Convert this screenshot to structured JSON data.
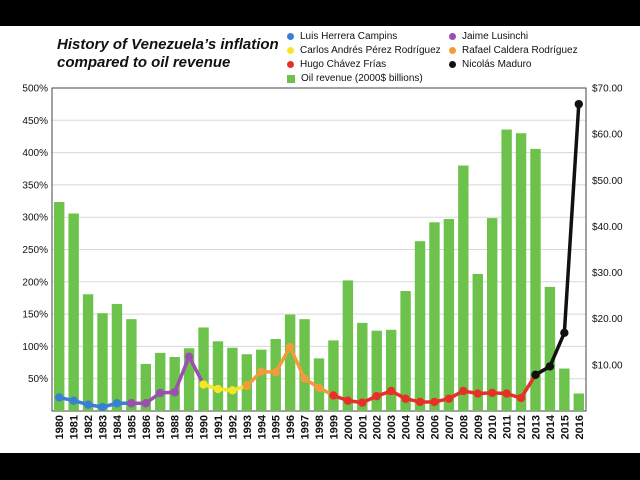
{
  "chart_data": {
    "type": "bar+line",
    "title_lines": [
      "History of Venezuela’s inflation",
      "compared to oil revenue"
    ],
    "categories": [
      "1980",
      "1981",
      "1982",
      "1983",
      "1984",
      "1985",
      "1986",
      "1987",
      "1988",
      "1989",
      "1990",
      "1991",
      "1992",
      "1993",
      "1994",
      "1995",
      "1996",
      "1997",
      "1998",
      "1999",
      "2000",
      "2001",
      "2002",
      "2003",
      "2004",
      "2005",
      "2006",
      "2007",
      "2008",
      "2009",
      "2010",
      "2011",
      "2012",
      "2013",
      "2014",
      "2015",
      "2016"
    ],
    "left_axis": {
      "label": "",
      "range": [
        0,
        500
      ],
      "ticks": [
        "50%",
        "100%",
        "150%",
        "200%",
        "250%",
        "300%",
        "350%",
        "400%",
        "450%",
        "500%"
      ]
    },
    "right_axis": {
      "label": "",
      "range": [
        0,
        70
      ],
      "ticks": [
        "$10.00",
        "$20.00",
        "$30.00",
        "$40.00",
        "$50.00",
        "$60.00",
        "$70.00"
      ]
    },
    "bars": {
      "name": "Oil revenue (2000$ billions)",
      "color": "#6cc24a",
      "values": [
        45.3,
        42.8,
        25.3,
        21.2,
        23.2,
        19.9,
        10.2,
        12.6,
        11.7,
        13.6,
        18.1,
        15.1,
        13.7,
        12.3,
        13.3,
        15.6,
        20.9,
        19.9,
        11.4,
        15.3,
        28.3,
        19.1,
        17.4,
        17.6,
        26.0,
        36.8,
        40.9,
        41.6,
        53.2,
        29.7,
        41.8,
        61.0,
        60.2,
        56.8,
        26.9,
        9.2,
        3.8
      ]
    },
    "series": [
      {
        "name": "Luis Herrera Campins",
        "color": "#3a7fd5",
        "x": [
          "1980",
          "1981",
          "1982",
          "1983",
          "1984",
          "1985"
        ],
        "values": [
          21,
          16,
          10,
          6,
          12,
          12
        ]
      },
      {
        "name": "Jaime Lusinchi",
        "color": "#9b4fb0",
        "x": [
          "1985",
          "1986",
          "1987",
          "1988",
          "1989",
          "1990"
        ],
        "values": [
          12,
          12,
          28,
          29,
          84,
          41
        ]
      },
      {
        "name": "Carlos Andrés Pérez Rodríguez",
        "color": "#f7e628",
        "x": [
          "1990",
          "1991",
          "1992",
          "1993"
        ],
        "values": [
          41,
          34,
          32,
          39
        ]
      },
      {
        "name": "Rafael Caldera Rodríguez",
        "color": "#f29b3a",
        "x": [
          "1993",
          "1994",
          "1995",
          "1996",
          "1997",
          "1998",
          "1999"
        ],
        "values": [
          39,
          61,
          60,
          99,
          50,
          36,
          24
        ]
      },
      {
        "name": "Hugo Chávez Frías",
        "color": "#e8302a",
        "x": [
          "1999",
          "2000",
          "2001",
          "2002",
          "2003",
          "2004",
          "2005",
          "2006",
          "2007",
          "2008",
          "2009",
          "2010",
          "2011",
          "2012",
          "2013"
        ],
        "values": [
          24,
          16,
          13,
          23,
          31,
          19,
          14,
          14,
          19,
          31,
          27,
          28,
          27,
          20,
          56
        ]
      },
      {
        "name": "Nicolás Maduro",
        "color": "#111111",
        "x": [
          "2013",
          "2014",
          "2015",
          "2016"
        ],
        "values": [
          56,
          69,
          121,
          475
        ]
      }
    ],
    "legend": [
      {
        "label": "Luis Herrera Campins",
        "color": "#3a7fd5",
        "shape": "dot"
      },
      {
        "label": "Carlos Andrés Pérez Rodríguez",
        "color": "#f7e628",
        "shape": "dot"
      },
      {
        "label": "Hugo Chávez Frías",
        "color": "#e8302a",
        "shape": "dot"
      },
      {
        "label": "Oil revenue (2000$ billions)",
        "color": "#6cc24a",
        "shape": "square"
      },
      {
        "label": "Jaime Lusinchi",
        "color": "#9b4fb0",
        "shape": "dot"
      },
      {
        "label": "Rafael Caldera Rodríguez",
        "color": "#f29b3a",
        "shape": "dot"
      },
      {
        "label": "Nicolás Maduro",
        "color": "#111111",
        "shape": "dot"
      }
    ],
    "legend_placement": "top-right",
    "grid": true
  }
}
